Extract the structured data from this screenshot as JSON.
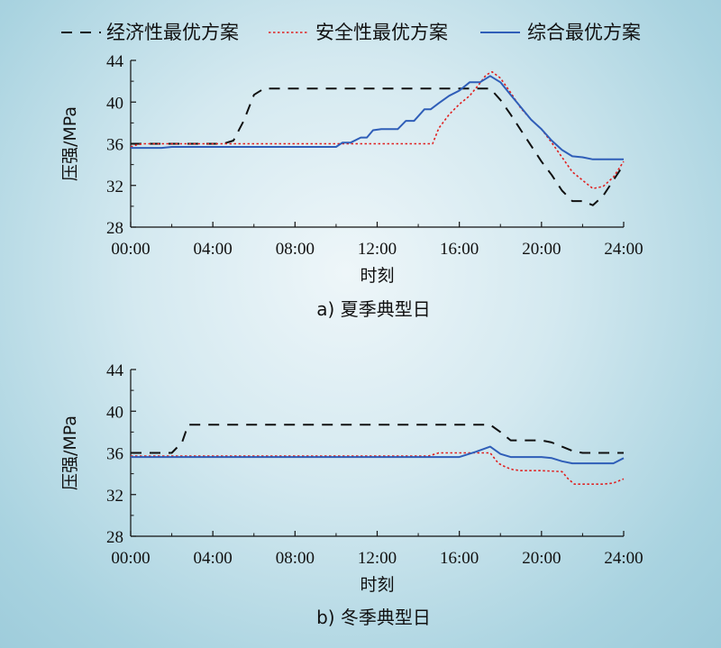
{
  "legend": [
    {
      "label": "经济性最优方案",
      "color": "#111111",
      "dash": "12,9",
      "width": 2
    },
    {
      "label": "安全性最优方案",
      "color": "#e02020",
      "dash": "2.5,2.5",
      "width": 1.6
    },
    {
      "label": "综合最优方案",
      "color": "#2f5eb8",
      "dash": "",
      "width": 2
    }
  ],
  "chart_data": [
    {
      "type": "line",
      "caption": "a) 夏季典型日",
      "xlabel": "时刻",
      "ylabel": "压强/MPa",
      "xlim": [
        0,
        24
      ],
      "ylim": [
        28,
        44
      ],
      "xticks": [
        0,
        4,
        8,
        12,
        16,
        20,
        24
      ],
      "xtick_labels": [
        "00:00",
        "04:00",
        "08:00",
        "12:00",
        "16:00",
        "20:00",
        "24:00"
      ],
      "yticks": [
        28,
        32,
        36,
        40,
        44
      ],
      "ytick_labels": [
        "28",
        "32",
        "36",
        "40",
        "44"
      ],
      "grid": false,
      "series": [
        {
          "name": "经济性最优方案",
          "x": [
            0,
            0.5,
            4.5,
            5,
            5.5,
            6,
            6.5,
            8,
            10,
            12,
            14,
            16,
            17,
            17.5,
            18,
            18.5,
            19,
            19.5,
            20,
            20.5,
            21,
            21.5,
            22,
            22.5,
            23,
            23.5,
            24
          ],
          "values": [
            36,
            36,
            36,
            36.3,
            38.2,
            40.7,
            41.3,
            41.3,
            41.3,
            41.3,
            41.3,
            41.3,
            41.3,
            41.3,
            40.2,
            38.8,
            37.3,
            35.8,
            34.3,
            33,
            31.5,
            30.5,
            30.5,
            30.1,
            31,
            32.5,
            34
          ]
        },
        {
          "name": "安全性最优方案",
          "x": [
            0,
            0.3,
            0.6,
            2,
            4,
            6,
            8,
            10,
            12,
            14,
            14.7,
            15,
            15.5,
            16,
            16.5,
            17,
            17.3,
            17.6,
            18,
            18.5,
            19,
            19.5,
            20,
            20.5,
            21,
            21.5,
            22,
            22.5,
            23,
            23.5,
            24
          ],
          "values": [
            35.7,
            35.9,
            36,
            36,
            36,
            36,
            36,
            36,
            36,
            36,
            36,
            37.5,
            38.8,
            39.8,
            40.6,
            41.8,
            42.6,
            42.9,
            42.3,
            40.9,
            39.4,
            38.3,
            37.4,
            36.1,
            34.7,
            33.3,
            32.5,
            31.7,
            31.9,
            32.8,
            34.3
          ]
        },
        {
          "name": "综合最优方案",
          "x": [
            0,
            1.5,
            2,
            4,
            6,
            8,
            10,
            10.3,
            10.7,
            11.2,
            11.5,
            11.8,
            12.2,
            13,
            13.4,
            13.8,
            14.3,
            14.6,
            15,
            15.5,
            16,
            16.5,
            17,
            17.5,
            18,
            18.5,
            19,
            19.5,
            20,
            20.5,
            21,
            21.5,
            22,
            22.5,
            23,
            23.5,
            24
          ],
          "values": [
            35.6,
            35.6,
            35.7,
            35.7,
            35.7,
            35.7,
            35.7,
            36.1,
            36.1,
            36.6,
            36.6,
            37.3,
            37.4,
            37.4,
            38.2,
            38.2,
            39.3,
            39.3,
            39.9,
            40.6,
            41.1,
            41.9,
            41.9,
            42.5,
            41.9,
            40.7,
            39.5,
            38.3,
            37.4,
            36.3,
            35.4,
            34.8,
            34.7,
            34.5,
            34.5,
            34.5,
            34.5
          ]
        }
      ]
    },
    {
      "type": "line",
      "caption": "b) 冬季典型日",
      "xlabel": "时刻",
      "ylabel": "压强/MPa",
      "xlim": [
        0,
        24
      ],
      "ylim": [
        28,
        44
      ],
      "xticks": [
        0,
        4,
        8,
        12,
        16,
        20,
        24
      ],
      "xtick_labels": [
        "00:00",
        "04:00",
        "08:00",
        "12:00",
        "16:00",
        "20:00",
        "24:00"
      ],
      "yticks": [
        28,
        32,
        36,
        40,
        44
      ],
      "ytick_labels": [
        "28",
        "32",
        "36",
        "40",
        "44"
      ],
      "grid": false,
      "series": [
        {
          "name": "经济性最优方案",
          "x": [
            0,
            2,
            2.5,
            2.8,
            3.2,
            6,
            10,
            14,
            17.5,
            18,
            18.5,
            20,
            20.5,
            21,
            21.5,
            22,
            24
          ],
          "values": [
            36,
            36,
            37,
            38.7,
            38.7,
            38.7,
            38.7,
            38.7,
            38.7,
            38,
            37.2,
            37.2,
            37,
            36.6,
            36.2,
            36,
            36
          ]
        },
        {
          "name": "安全性最优方案",
          "x": [
            0,
            4,
            8,
            12,
            14.5,
            15,
            16,
            17.5,
            17.9,
            18.3,
            18.6,
            19,
            20,
            21,
            21.3,
            21.6,
            22,
            23,
            23.5,
            24
          ],
          "values": [
            35.7,
            35.7,
            35.7,
            35.7,
            35.7,
            36,
            36,
            36,
            35,
            34.6,
            34.4,
            34.3,
            34.3,
            34.2,
            33.5,
            33,
            33,
            33,
            33.1,
            33.5
          ]
        },
        {
          "name": "综合最优方案",
          "x": [
            0,
            4,
            8,
            12,
            16,
            16.8,
            17.5,
            18,
            18.5,
            20,
            20.5,
            21,
            21.5,
            23.5,
            24
          ],
          "values": [
            35.6,
            35.6,
            35.6,
            35.6,
            35.6,
            36.1,
            36.6,
            35.9,
            35.6,
            35.6,
            35.5,
            35.2,
            35,
            35,
            35.5
          ]
        }
      ]
    }
  ]
}
